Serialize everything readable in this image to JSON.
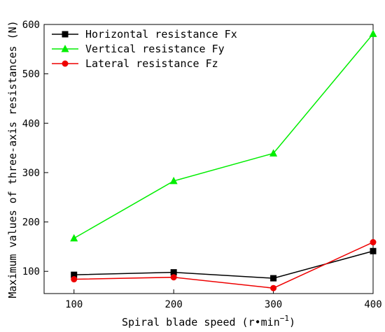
{
  "chart_data": {
    "type": "line",
    "xlabel_main": "Spiral blade speed (r•min",
    "xlabel_sup": "−1",
    "xlabel_close": ")",
    "ylabel": "Maximum values of three-axis resistances (N)",
    "x": [
      100,
      200,
      300,
      400
    ],
    "xticks": [
      "100",
      "200",
      "300",
      "400"
    ],
    "yticks": [
      "100",
      "200",
      "300",
      "400",
      "500",
      "600"
    ],
    "xlim": [
      70,
      400
    ],
    "ylim": [
      55,
      600
    ],
    "grid": false,
    "legend_position": "top-left",
    "series": [
      {
        "name": "Horizontal resistance Fx",
        "marker": "square",
        "color": "#000000",
        "values": [
          93,
          98,
          86,
          141
        ]
      },
      {
        "name": "Vertical resistance Fy",
        "marker": "triangle",
        "color": "#00ee00",
        "values": [
          167,
          283,
          339,
          581
        ]
      },
      {
        "name": "Lateral resistance Fz",
        "marker": "circle",
        "color": "#ee0000",
        "values": [
          84,
          88,
          66,
          159
        ]
      }
    ]
  }
}
